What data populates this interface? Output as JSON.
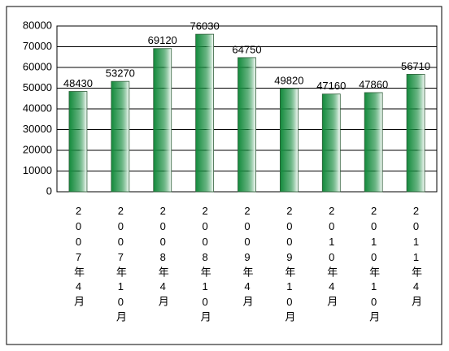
{
  "chart_data": {
    "type": "bar",
    "categories": [
      "2007年4月",
      "2007年10月",
      "2008年4月",
      "2008年10月",
      "2009年4月",
      "2009年10月",
      "2010年4月",
      "2010年10月",
      "2011年4月"
    ],
    "values": [
      48430,
      53270,
      69120,
      76030,
      64750,
      49820,
      47160,
      47860,
      56710
    ],
    "color": "#138a3c",
    "ylim": [
      0,
      80000
    ],
    "yticks": [
      0,
      10000,
      20000,
      30000,
      40000,
      50000,
      60000,
      70000,
      80000
    ],
    "grid": true
  }
}
